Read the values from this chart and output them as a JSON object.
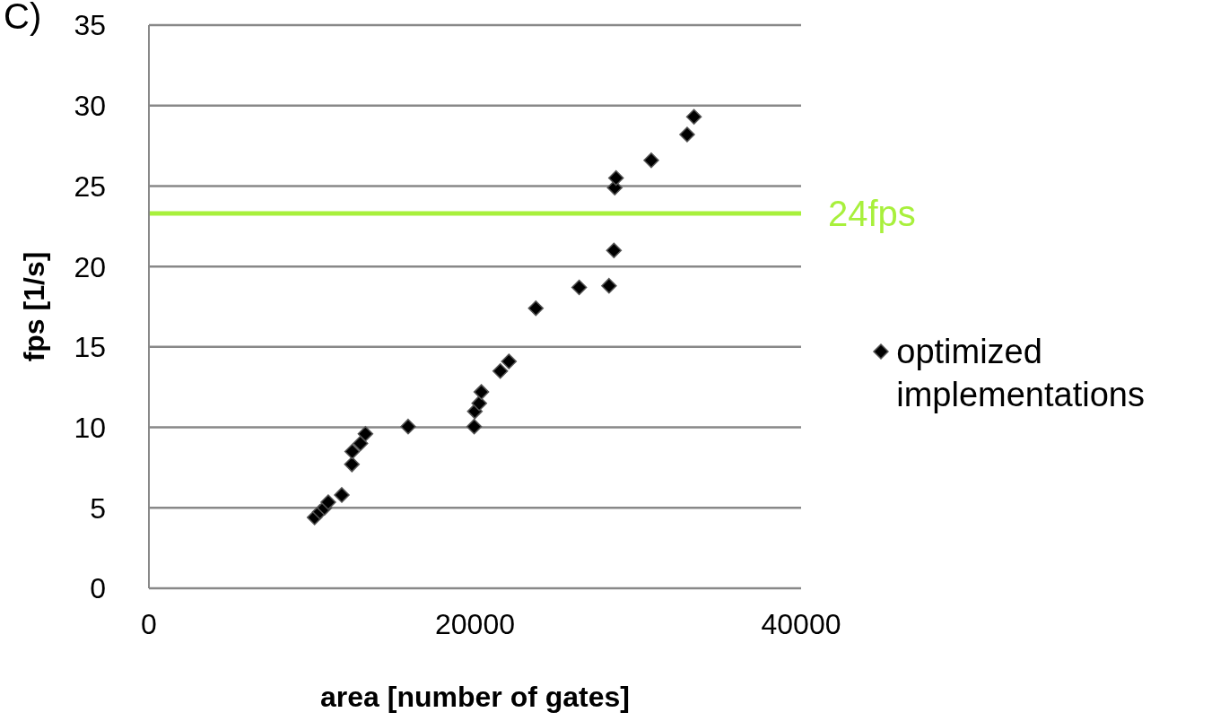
{
  "chart_data": {
    "type": "scatter",
    "xlabel": "area [number of gates]",
    "ylabel": "fps [1/s]",
    "annotations": [
      "C)"
    ],
    "x": [
      10160,
      10490,
      10770,
      11000,
      11830,
      12450,
      12470,
      12970,
      13280,
      15900,
      19950,
      19990,
      20260,
      20390,
      21550,
      22080,
      23730,
      26390,
      28220,
      28520,
      28570,
      28650,
      30810,
      33010,
      33430
    ],
    "series": [
      {
        "name": "optimized implementations",
        "color": "#000000",
        "values": [
          4.4,
          4.75,
          5.0,
          5.35,
          5.8,
          7.7,
          8.5,
          9.0,
          9.6,
          10.05,
          10.05,
          11.0,
          11.5,
          12.2,
          13.5,
          14.1,
          17.4,
          18.7,
          18.8,
          21.0,
          24.9,
          25.5,
          26.6,
          28.2,
          29.3
        ]
      }
    ],
    "xlim": [
      0,
      40000
    ],
    "xticks": [
      0,
      20000,
      40000
    ],
    "ylim": [
      0,
      35
    ],
    "yticks": [
      0,
      5,
      10,
      15,
      20,
      25,
      30,
      35
    ],
    "grid": "y",
    "legend": "right",
    "marker": "diamond",
    "ref_lines": [
      {
        "axis": "y",
        "value": 23.3,
        "label": "24fps",
        "color": "#a8f03c"
      }
    ]
  }
}
